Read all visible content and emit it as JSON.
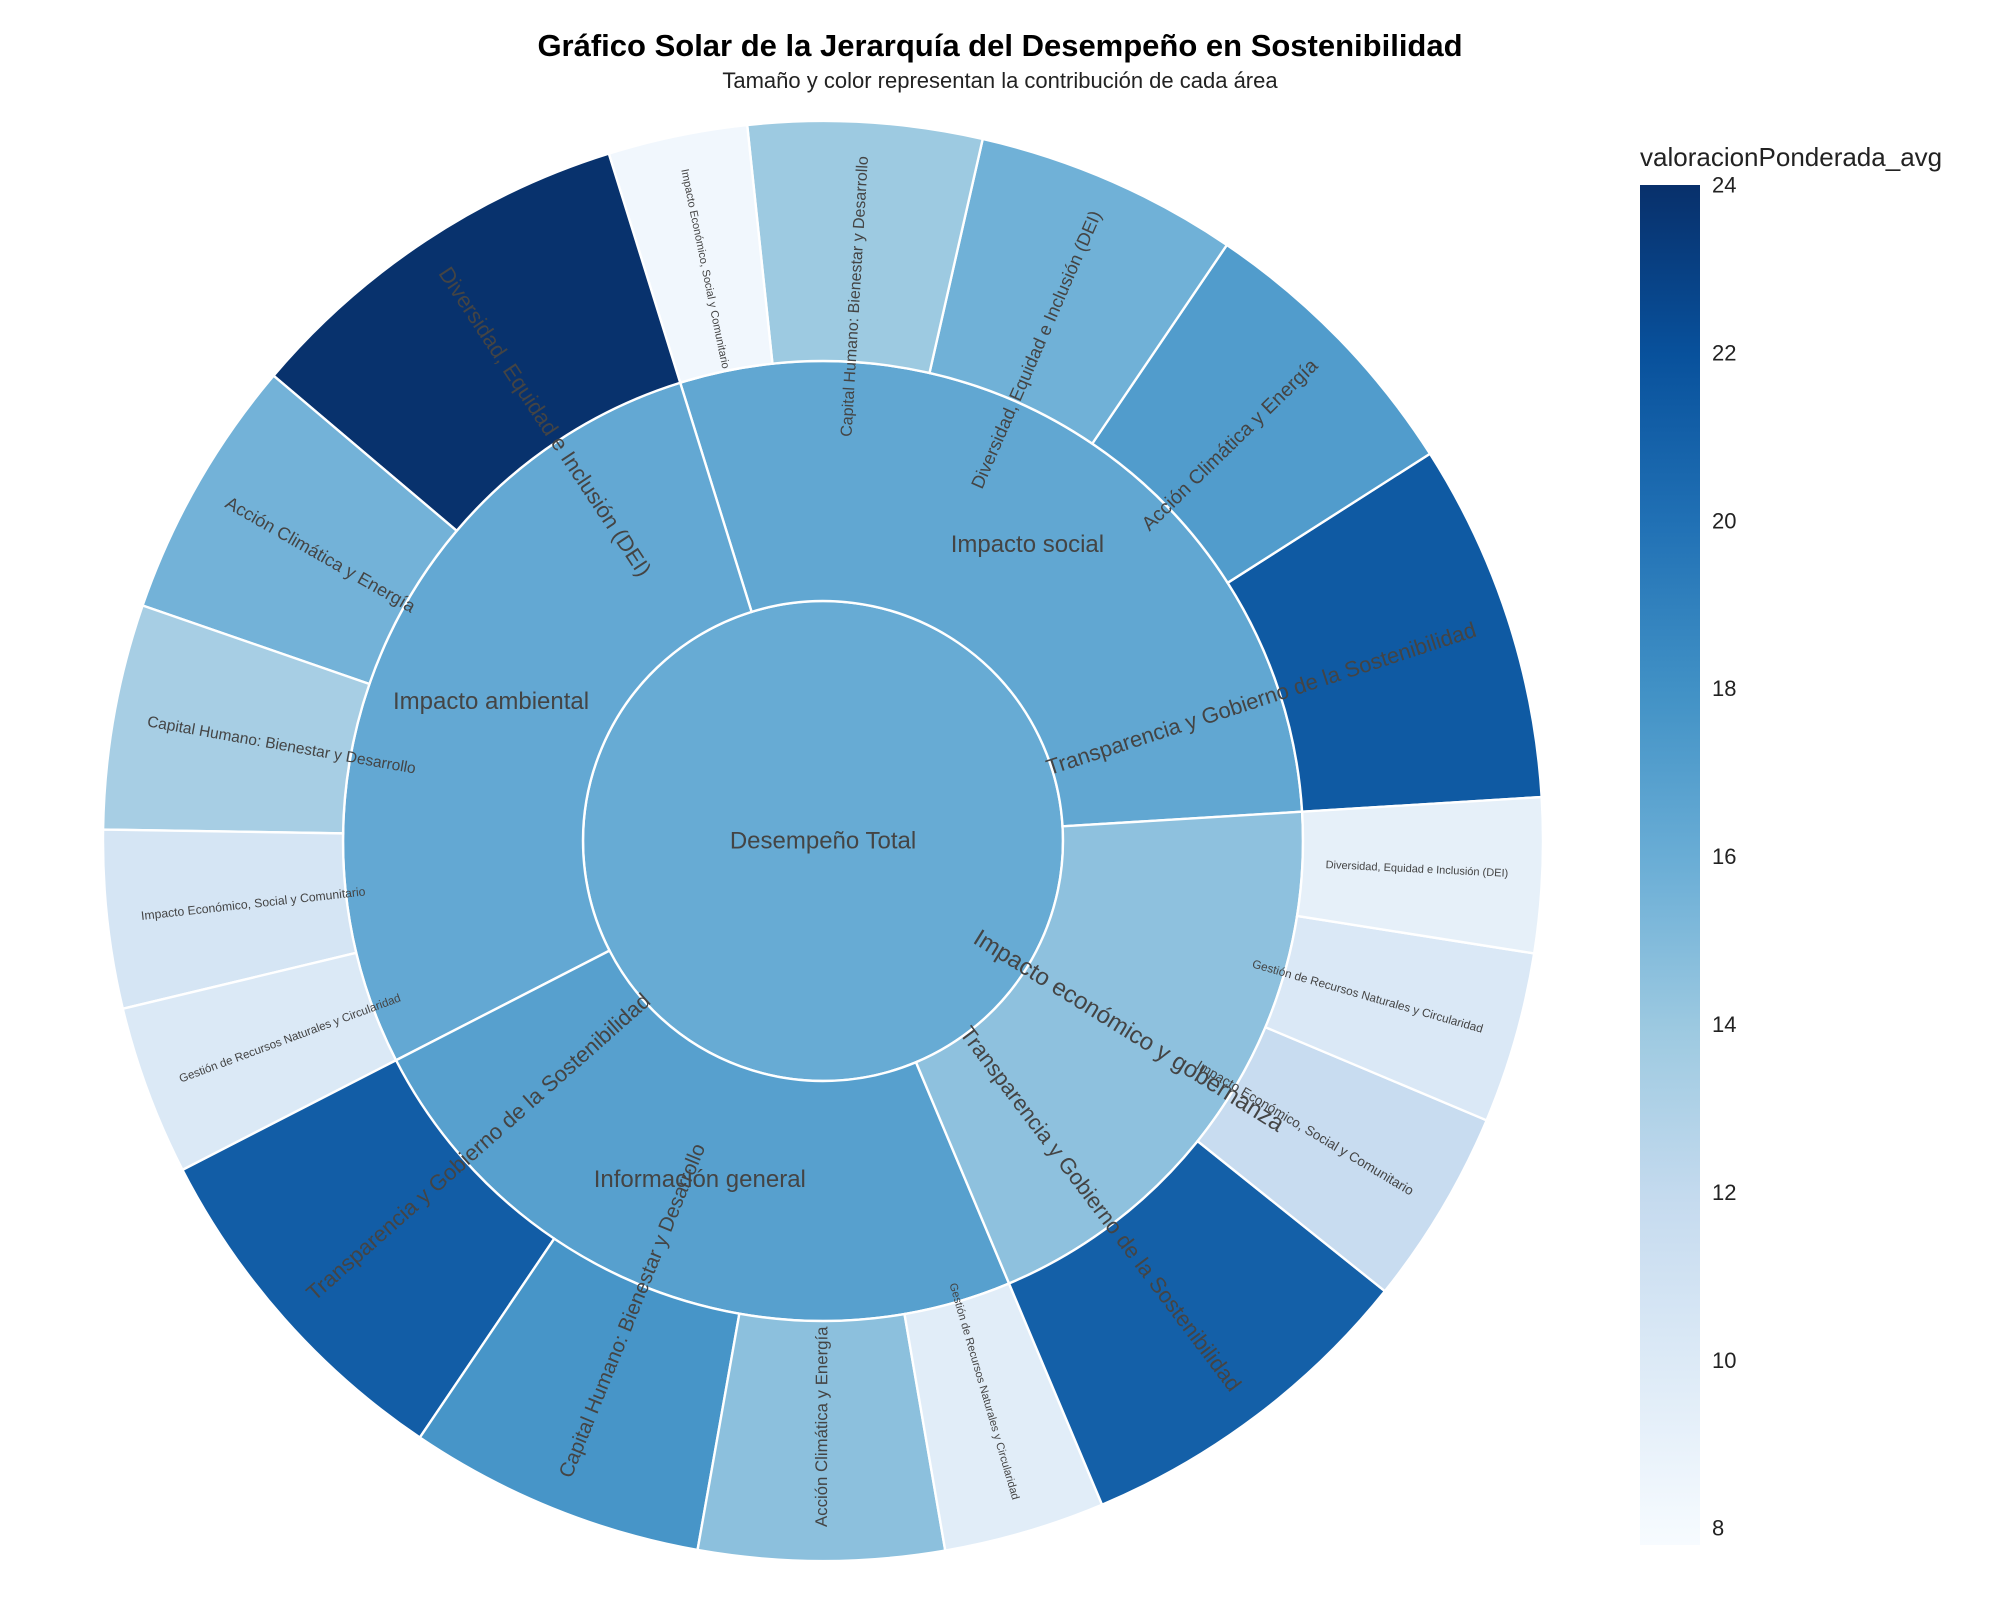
{
  "title": "Gráfico Solar de la Jerarquía del Desempeño en Sostenibilidad",
  "subtitle": "Tamaño y color representan la contribución de cada área",
  "colorbar": {
    "title": "valoracionPonderada_avg",
    "min": 7.8,
    "max": 24,
    "ticks": [
      24,
      22,
      20,
      18,
      16,
      14,
      12,
      10,
      8
    ],
    "colorscale": [
      "#f7fbff",
      "#deebf7",
      "#c6dbef",
      "#9ecae1",
      "#6baed6",
      "#4292c6",
      "#2171b5",
      "#08519c",
      "#08306b"
    ]
  },
  "chart_data": {
    "type": "sunburst",
    "root": {
      "label": "Desempeño Total",
      "value": 16.1
    },
    "children": [
      {
        "label": "Impacto social",
        "value": 16.4,
        "children": [
          {
            "label": "Transparencia y Gobierno de la Sostenibilidad",
            "value": 21.4
          },
          {
            "label": "Acción Climática y Energía",
            "value": 17.2
          },
          {
            "label": "Diversidad, Equidad e Inclusión (DEI)",
            "value": 15.7
          },
          {
            "label": "Capital Humano: Bienestar y Desarrollo",
            "value": 13.9
          },
          {
            "label": "Impacto Económico, Social y Comunitario",
            "value": 8.3
          }
        ]
      },
      {
        "label": "Impacto ambiental",
        "value": 16.3,
        "children": [
          {
            "label": "Diversidad, Equidad e Inclusión (DEI)",
            "value": 23.9
          },
          {
            "label": "Acción Climática y Energía",
            "value": 15.6
          },
          {
            "label": "Capital Humano: Bienestar y Desarrollo",
            "value": 13.4
          },
          {
            "label": "Impacto Económico, Social y Comunitario",
            "value": 10.6
          },
          {
            "label": "Gestión de Recursos Naturales y Circularidad",
            "value": 10.1
          }
        ]
      },
      {
        "label": "Información general",
        "value": 16.9,
        "children": [
          {
            "label": "Transparencia y Gobierno de la Sostenibilidad",
            "value": 21.2
          },
          {
            "label": "Capital Humano: Bienestar y Desarrollo",
            "value": 17.7
          },
          {
            "label": "Acción Climática y Energía",
            "value": 14.6
          },
          {
            "label": "Gestión de Recursos Naturales y Circularidad",
            "value": 9.6
          }
        ]
      },
      {
        "label": "Impacto económico y gobernanza",
        "value": 14.5,
        "children": [
          {
            "label": "Transparencia y Gobierno de la Sostenibilidad",
            "value": 21.0
          },
          {
            "label": "Impacto Económico, Social y Comunitario",
            "value": 11.7
          },
          {
            "label": "Gestión de Recursos Naturales y Circularidad",
            "value": 10.2
          },
          {
            "label": "Diversidad, Equidad e Inclusión (DEI)",
            "value": 9.2
          }
        ]
      }
    ]
  }
}
